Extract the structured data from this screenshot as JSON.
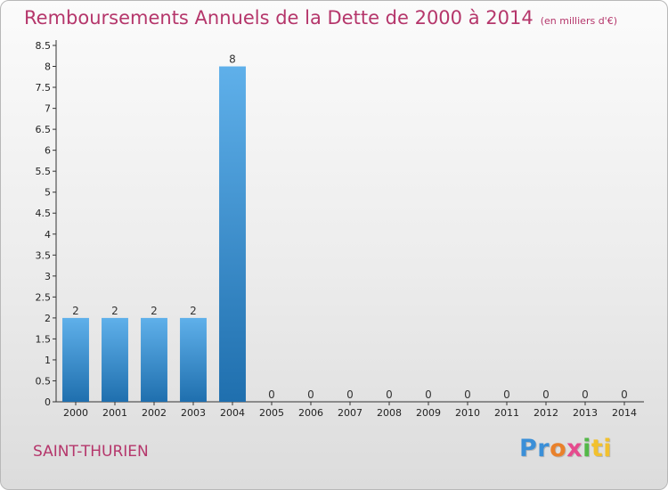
{
  "title": "Remboursements Annuels de la Dette de 2000 à 2014",
  "subtitle": "(en milliers d'€)",
  "commune": "SAINT-THURIEN",
  "logo": {
    "parts": [
      "Pr",
      "o",
      "x",
      "i",
      "ti"
    ]
  },
  "colors": {
    "title": "#b5366b",
    "bar_light": "#5fb0ea",
    "bar_dark": "#1f6fae"
  },
  "chart_data": {
    "type": "bar",
    "title": "Remboursements Annuels de la Dette de 2000 à 2014",
    "subtitle": "(en milliers d'€)",
    "xlabel": "",
    "ylabel": "",
    "categories": [
      "2000",
      "2001",
      "2002",
      "2003",
      "2004",
      "2005",
      "2006",
      "2007",
      "2008",
      "2009",
      "2010",
      "2011",
      "2012",
      "2013",
      "2014"
    ],
    "values": [
      2,
      2,
      2,
      2,
      8,
      0,
      0,
      0,
      0,
      0,
      0,
      0,
      0,
      0,
      0
    ],
    "data_labels": [
      "2",
      "2",
      "2",
      "2",
      "8",
      "0",
      "0",
      "0",
      "0",
      "0",
      "0",
      "0",
      "0",
      "0",
      "0"
    ],
    "ylim": [
      0,
      8.5
    ],
    "yticks": [
      "0",
      "0.5",
      "1",
      "1.5",
      "2",
      "2.5",
      "3",
      "3.5",
      "4",
      "4.5",
      "5",
      "5.5",
      "6",
      "6.5",
      "7",
      "7.5",
      "8",
      "8.5"
    ],
    "grid": false
  }
}
